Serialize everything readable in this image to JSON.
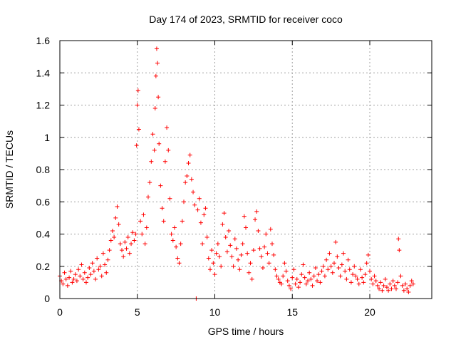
{
  "chart_data": {
    "type": "scatter",
    "title": "Day 174 of 2023, SRMTID for receiver coco",
    "xlabel": "GPS time / hours",
    "ylabel": "SRMTID / TECUs",
    "xlim": [
      0,
      24
    ],
    "ylim": [
      0,
      1.6
    ],
    "x_ticks": [
      0,
      5,
      10,
      15,
      20
    ],
    "x_tick_labels": [
      "0",
      "5",
      "10",
      "15",
      "20"
    ],
    "y_ticks": [
      0,
      0.2,
      0.4,
      0.6,
      0.8,
      1.0,
      1.2,
      1.4,
      1.6
    ],
    "y_tick_labels": [
      "0",
      "0.2",
      "0.4",
      "0.6",
      "0.8",
      "1",
      "1.2",
      "1.4",
      "1.6"
    ],
    "grid": true,
    "marker": "plus",
    "marker_color": "#ff0000",
    "series": [
      {
        "name": "SRMTID",
        "points": [
          [
            0.0,
            0.14
          ],
          [
            0.1,
            0.11
          ],
          [
            0.2,
            0.09
          ],
          [
            0.3,
            0.16
          ],
          [
            0.4,
            0.12
          ],
          [
            0.5,
            0.08
          ],
          [
            0.6,
            0.13
          ],
          [
            0.7,
            0.17
          ],
          [
            0.8,
            0.1
          ],
          [
            0.9,
            0.12
          ],
          [
            1.0,
            0.15
          ],
          [
            1.1,
            0.11
          ],
          [
            1.2,
            0.18
          ],
          [
            1.3,
            0.14
          ],
          [
            1.4,
            0.21
          ],
          [
            1.5,
            0.12
          ],
          [
            1.6,
            0.16
          ],
          [
            1.7,
            0.1
          ],
          [
            1.8,
            0.13
          ],
          [
            1.9,
            0.19
          ],
          [
            2.0,
            0.15
          ],
          [
            2.1,
            0.22
          ],
          [
            2.2,
            0.17
          ],
          [
            2.3,
            0.12
          ],
          [
            2.4,
            0.25
          ],
          [
            2.5,
            0.18
          ],
          [
            2.6,
            0.2
          ],
          [
            2.7,
            0.14
          ],
          [
            2.8,
            0.28
          ],
          [
            2.9,
            0.21
          ],
          [
            3.0,
            0.16
          ],
          [
            3.1,
            0.24
          ],
          [
            3.2,
            0.3
          ],
          [
            3.3,
            0.36
          ],
          [
            3.4,
            0.42
          ],
          [
            3.5,
            0.38
          ],
          [
            3.6,
            0.5
          ],
          [
            3.7,
            0.57
          ],
          [
            3.8,
            0.46
          ],
          [
            3.9,
            0.34
          ],
          [
            4.0,
            0.3
          ],
          [
            4.1,
            0.26
          ],
          [
            4.2,
            0.35
          ],
          [
            4.3,
            0.31
          ],
          [
            4.4,
            0.38
          ],
          [
            4.5,
            0.28
          ],
          [
            4.6,
            0.34
          ],
          [
            4.7,
            0.41
          ],
          [
            4.8,
            0.36
          ],
          [
            4.9,
            0.4
          ],
          [
            4.95,
            0.95
          ],
          [
            5.0,
            1.2
          ],
          [
            5.05,
            1.29
          ],
          [
            5.1,
            1.05
          ],
          [
            5.2,
            0.48
          ],
          [
            5.3,
            0.4
          ],
          [
            5.4,
            0.52
          ],
          [
            5.5,
            0.34
          ],
          [
            5.6,
            0.44
          ],
          [
            5.7,
            0.63
          ],
          [
            5.8,
            0.72
          ],
          [
            5.9,
            0.85
          ],
          [
            6.0,
            1.02
          ],
          [
            6.1,
            0.92
          ],
          [
            6.15,
            1.18
          ],
          [
            6.2,
            1.38
          ],
          [
            6.25,
            1.55
          ],
          [
            6.3,
            1.46
          ],
          [
            6.35,
            1.25
          ],
          [
            6.4,
            0.96
          ],
          [
            6.5,
            0.7
          ],
          [
            6.6,
            0.56
          ],
          [
            6.7,
            0.48
          ],
          [
            6.8,
            0.85
          ],
          [
            6.9,
            1.06
          ],
          [
            7.0,
            0.92
          ],
          [
            7.1,
            0.62
          ],
          [
            7.2,
            0.4
          ],
          [
            7.3,
            0.36
          ],
          [
            7.4,
            0.44
          ],
          [
            7.5,
            0.32
          ],
          [
            7.6,
            0.25
          ],
          [
            7.7,
            0.22
          ],
          [
            7.8,
            0.34
          ],
          [
            7.9,
            0.48
          ],
          [
            8.0,
            0.6
          ],
          [
            8.1,
            0.72
          ],
          [
            8.2,
            0.76
          ],
          [
            8.3,
            0.84
          ],
          [
            8.4,
            0.89
          ],
          [
            8.5,
            0.74
          ],
          [
            8.6,
            0.66
          ],
          [
            8.7,
            0.58
          ],
          [
            8.8,
            0.0
          ],
          [
            8.9,
            0.55
          ],
          [
            9.0,
            0.62
          ],
          [
            9.1,
            0.47
          ],
          [
            9.2,
            0.34
          ],
          [
            9.3,
            0.52
          ],
          [
            9.4,
            0.56
          ],
          [
            9.5,
            0.38
          ],
          [
            9.6,
            0.25
          ],
          [
            9.7,
            0.18
          ],
          [
            9.8,
            0.3
          ],
          [
            9.9,
            0.22
          ],
          [
            10.0,
            0.15
          ],
          [
            10.1,
            0.28
          ],
          [
            10.2,
            0.34
          ],
          [
            10.3,
            0.26
          ],
          [
            10.4,
            0.2
          ],
          [
            10.5,
            0.46
          ],
          [
            10.6,
            0.53
          ],
          [
            10.7,
            0.38
          ],
          [
            10.8,
            0.29
          ],
          [
            10.9,
            0.42
          ],
          [
            11.0,
            0.33
          ],
          [
            11.1,
            0.26
          ],
          [
            11.2,
            0.2
          ],
          [
            11.3,
            0.37
          ],
          [
            11.4,
            0.31
          ],
          [
            11.5,
            0.24
          ],
          [
            11.6,
            0.18
          ],
          [
            11.7,
            0.27
          ],
          [
            11.8,
            0.34
          ],
          [
            11.9,
            0.51
          ],
          [
            12.0,
            0.44
          ],
          [
            12.1,
            0.28
          ],
          [
            12.2,
            0.16
          ],
          [
            12.3,
            0.22
          ],
          [
            12.4,
            0.12
          ],
          [
            12.5,
            0.3
          ],
          [
            12.6,
            0.49
          ],
          [
            12.7,
            0.54
          ],
          [
            12.8,
            0.42
          ],
          [
            12.9,
            0.31
          ],
          [
            13.0,
            0.26
          ],
          [
            13.1,
            0.19
          ],
          [
            13.2,
            0.32
          ],
          [
            13.3,
            0.4
          ],
          [
            13.4,
            0.28
          ],
          [
            13.5,
            0.22
          ],
          [
            13.6,
            0.43
          ],
          [
            13.7,
            0.34
          ],
          [
            13.8,
            0.27
          ],
          [
            13.9,
            0.18
          ],
          [
            14.0,
            0.14
          ],
          [
            14.1,
            0.12
          ],
          [
            14.2,
            0.1
          ],
          [
            14.3,
            0.09
          ],
          [
            14.4,
            0.14
          ],
          [
            14.5,
            0.22
          ],
          [
            14.6,
            0.17
          ],
          [
            14.7,
            0.11
          ],
          [
            14.8,
            0.08
          ],
          [
            14.9,
            0.06
          ],
          [
            15.0,
            0.13
          ],
          [
            15.1,
            0.18
          ],
          [
            15.2,
            0.09
          ],
          [
            15.3,
            0.12
          ],
          [
            15.4,
            0.07
          ],
          [
            15.5,
            0.1
          ],
          [
            15.6,
            0.15
          ],
          [
            15.7,
            0.21
          ],
          [
            15.8,
            0.13
          ],
          [
            15.9,
            0.09
          ],
          [
            16.0,
            0.11
          ],
          [
            16.1,
            0.16
          ],
          [
            16.2,
            0.12
          ],
          [
            16.3,
            0.08
          ],
          [
            16.4,
            0.14
          ],
          [
            16.5,
            0.19
          ],
          [
            16.6,
            0.11
          ],
          [
            16.7,
            0.15
          ],
          [
            16.8,
            0.1
          ],
          [
            16.9,
            0.17
          ],
          [
            17.0,
            0.2
          ],
          [
            17.1,
            0.14
          ],
          [
            17.2,
            0.24
          ],
          [
            17.3,
            0.18
          ],
          [
            17.4,
            0.28
          ],
          [
            17.5,
            0.2
          ],
          [
            17.6,
            0.16
          ],
          [
            17.7,
            0.22
          ],
          [
            17.8,
            0.35
          ],
          [
            17.9,
            0.26
          ],
          [
            18.0,
            0.19
          ],
          [
            18.1,
            0.14
          ],
          [
            18.2,
            0.21
          ],
          [
            18.3,
            0.28
          ],
          [
            18.4,
            0.17
          ],
          [
            18.5,
            0.12
          ],
          [
            18.6,
            0.24
          ],
          [
            18.7,
            0.18
          ],
          [
            18.8,
            0.1
          ],
          [
            18.9,
            0.15
          ],
          [
            19.0,
            0.2
          ],
          [
            19.1,
            0.14
          ],
          [
            19.2,
            0.12
          ],
          [
            19.3,
            0.09
          ],
          [
            19.4,
            0.18
          ],
          [
            19.5,
            0.13
          ],
          [
            19.6,
            0.1
          ],
          [
            19.7,
            0.15
          ],
          [
            19.8,
            0.22
          ],
          [
            19.9,
            0.27
          ],
          [
            20.0,
            0.17
          ],
          [
            20.1,
            0.12
          ],
          [
            20.2,
            0.09
          ],
          [
            20.3,
            0.14
          ],
          [
            20.4,
            0.11
          ],
          [
            20.5,
            0.08
          ],
          [
            20.6,
            0.06
          ],
          [
            20.7,
            0.1
          ],
          [
            20.8,
            0.05
          ],
          [
            20.9,
            0.08
          ],
          [
            21.0,
            0.12
          ],
          [
            21.1,
            0.07
          ],
          [
            21.2,
            0.05
          ],
          [
            21.3,
            0.09
          ],
          [
            21.4,
            0.06
          ],
          [
            21.5,
            0.11
          ],
          [
            21.6,
            0.08
          ],
          [
            21.7,
            0.06
          ],
          [
            21.8,
            0.1
          ],
          [
            21.85,
            0.37
          ],
          [
            21.9,
            0.3
          ],
          [
            22.0,
            0.14
          ],
          [
            22.1,
            0.08
          ],
          [
            22.2,
            0.05
          ],
          [
            22.3,
            0.09
          ],
          [
            22.4,
            0.06
          ],
          [
            22.5,
            0.04
          ],
          [
            22.6,
            0.08
          ],
          [
            22.7,
            0.11
          ],
          [
            22.8,
            0.09
          ]
        ]
      }
    ]
  }
}
